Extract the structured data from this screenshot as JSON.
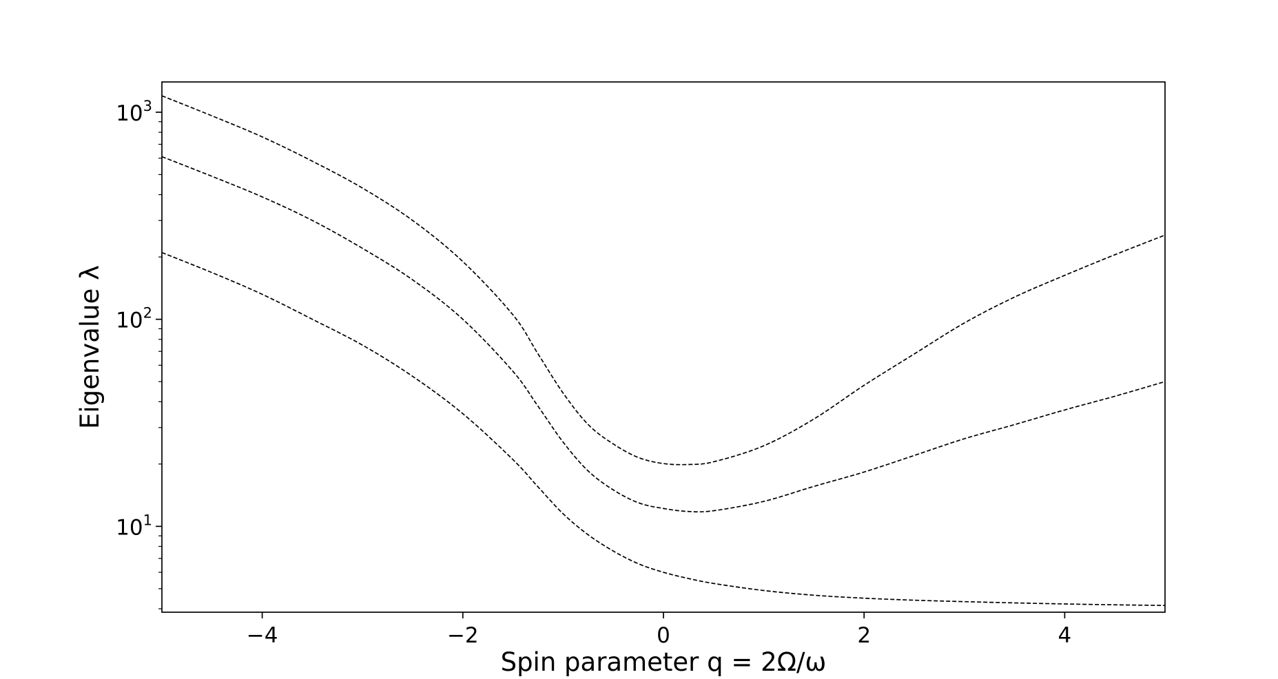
{
  "chart_data": {
    "type": "line",
    "title": "",
    "xlabel": "Spin parameter q = 2Ω/ω",
    "ylabel": "Eigenvalue λ",
    "xlim": [
      -5,
      5
    ],
    "ylim": [
      3.85,
      1400
    ],
    "yscale": "log",
    "grid": false,
    "legend": "none",
    "line_style": "dashed",
    "line_color": "#000000",
    "x_ticks": [
      -4,
      -2,
      0,
      2,
      4
    ],
    "x_tick_labels": [
      "−4",
      "−2",
      "0",
      "2",
      "4"
    ],
    "y_ticks": [
      {
        "value": 10,
        "base": "10",
        "exp": "1"
      },
      {
        "value": 100,
        "base": "10",
        "exp": "2"
      },
      {
        "value": 1000,
        "base": "10",
        "exp": "3"
      }
    ],
    "y_minor_ticks": [
      4,
      5,
      6,
      7,
      8,
      9,
      20,
      30,
      40,
      50,
      60,
      70,
      80,
      90,
      200,
      300,
      400,
      500,
      600,
      700,
      800,
      900
    ],
    "x": [
      -5,
      -4.5,
      -4,
      -3.5,
      -3,
      -2.5,
      -2,
      -1.5,
      -1.25,
      -1,
      -0.75,
      -0.5,
      -0.25,
      0,
      0.25,
      0.5,
      1,
      1.5,
      2,
      2.5,
      3,
      3.5,
      4,
      4.5,
      5
    ],
    "series": [
      {
        "values": [
          1200,
          960,
          760,
          580,
          430,
          300,
          190,
          105,
          68,
          44,
          31,
          25,
          21.5,
          20.1,
          19.9,
          20.5,
          24.5,
          33,
          48,
          68,
          96,
          128,
          163,
          205,
          255
        ]
      },
      {
        "values": [
          610,
          490,
          390,
          300,
          220,
          155,
          100,
          56,
          38,
          25.5,
          18.5,
          15,
          13,
          12.2,
          11.8,
          11.9,
          13.2,
          15.6,
          18.3,
          22,
          26.5,
          31,
          36.5,
          42.5,
          50
        ]
      },
      {
        "values": [
          210,
          168,
          132,
          100,
          75,
          53,
          35,
          21,
          15.5,
          11.5,
          9.1,
          7.6,
          6.6,
          6.0,
          5.6,
          5.3,
          4.9,
          4.65,
          4.5,
          4.4,
          4.33,
          4.27,
          4.22,
          4.18,
          4.15
        ]
      }
    ]
  }
}
